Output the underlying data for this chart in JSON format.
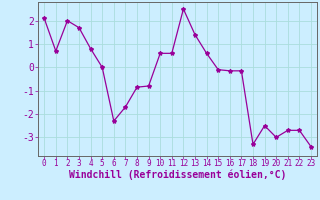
{
  "x": [
    0,
    1,
    2,
    3,
    4,
    5,
    6,
    7,
    8,
    9,
    10,
    11,
    12,
    13,
    14,
    15,
    16,
    17,
    18,
    19,
    20,
    21,
    22,
    23
  ],
  "y": [
    2.1,
    0.7,
    2.0,
    1.7,
    0.8,
    0.0,
    -2.3,
    -1.7,
    -0.85,
    -0.8,
    0.6,
    0.6,
    2.5,
    1.4,
    0.6,
    -0.1,
    -0.15,
    -0.15,
    -3.3,
    -2.5,
    -3.0,
    -2.7,
    -2.7,
    -3.4
  ],
  "line_color": "#990099",
  "marker": "*",
  "marker_size": 3,
  "bg_color": "#cceeff",
  "grid_color": "#aadddd",
  "xlabel": "Windchill (Refroidissement éolien,°C)",
  "ylim": [
    -3.8,
    2.8
  ],
  "xlim": [
    -0.5,
    23.5
  ],
  "yticks": [
    -3,
    -2,
    -1,
    0,
    1,
    2
  ],
  "xticks": [
    0,
    1,
    2,
    3,
    4,
    5,
    6,
    7,
    8,
    9,
    10,
    11,
    12,
    13,
    14,
    15,
    16,
    17,
    18,
    19,
    20,
    21,
    22,
    23
  ],
  "tick_label_color": "#990099",
  "axis_color": "#666666",
  "xlabel_color": "#990099",
  "xlabel_fontsize": 7,
  "ytick_fontsize": 7,
  "xtick_fontsize": 5.5
}
